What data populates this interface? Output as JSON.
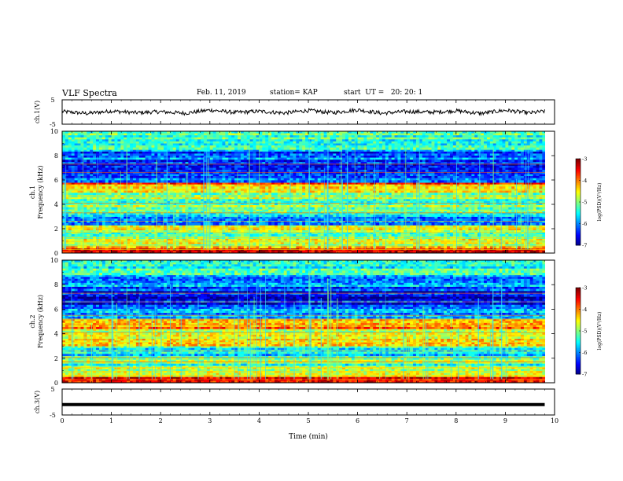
{
  "header": {
    "title": "VLF Spectra",
    "date": "Feb. 11, 2019",
    "station": "station= KAP",
    "start": "start  UT =   20: 20: 1"
  },
  "chart_data": [
    {
      "type": "line",
      "panel": "ch1-waveform",
      "ylabel": "ch.1(V)",
      "ylim": [
        -5,
        5
      ],
      "yticks": [
        "5",
        "-5"
      ],
      "xlim": [
        0,
        10
      ],
      "note_values": "approximate waveform samples (V) vs time (min)",
      "x": [
        0,
        0.5,
        1,
        1.5,
        2,
        2.5,
        3,
        3.5,
        4,
        4.5,
        5,
        5.5,
        6,
        6.5,
        7,
        7.5,
        8,
        8.5,
        9,
        9.5,
        9.8
      ],
      "y": [
        0.2,
        -0.6,
        0.4,
        -0.3,
        0.1,
        -0.5,
        0.8,
        -0.2,
        0.3,
        -0.4,
        0.6,
        -0.3,
        0.9,
        -0.5,
        0.2,
        -0.1,
        0.5,
        -0.6,
        0.7,
        -0.4,
        0.3
      ]
    },
    {
      "type": "heatmap",
      "panel": "ch1-spectrogram",
      "ylabel": "ch.1",
      "ylabel2": "Frequency  (kHz)",
      "xlim": [
        0,
        10
      ],
      "ylim": [
        0,
        10
      ],
      "yticks": [
        "0",
        "2",
        "4",
        "6",
        "8",
        "10"
      ],
      "colorbar": {
        "label": "log(PSD)(V²/Hz)",
        "range": [
          -7,
          -3
        ],
        "ticks": [
          "-3",
          "-4",
          "-5",
          "-6",
          "-7"
        ]
      },
      "bands": [
        {
          "f": [
            0,
            0.4
          ],
          "level": -3.5
        },
        {
          "f": [
            0.4,
            1.2
          ],
          "level": -4.6
        },
        {
          "f": [
            1.2,
            1.9
          ],
          "level": -5.0
        },
        {
          "f": [
            1.9,
            2.3
          ],
          "level": -4.3
        },
        {
          "f": [
            2.3,
            3.0
          ],
          "level": -5.7
        },
        {
          "f": [
            3.0,
            3.6
          ],
          "level": -5.3
        },
        {
          "f": [
            3.6,
            4.6
          ],
          "level": -5.0
        },
        {
          "f": [
            4.6,
            5.3
          ],
          "level": -4.8
        },
        {
          "f": [
            5.3,
            5.8
          ],
          "level": -4.0
        },
        {
          "f": [
            5.8,
            6.5
          ],
          "level": -6.2
        },
        {
          "f": [
            6.5,
            7.5
          ],
          "level": -6.5
        },
        {
          "f": [
            7.5,
            8.5
          ],
          "level": -6.1
        },
        {
          "f": [
            8.5,
            10
          ],
          "level": -5.2
        }
      ]
    },
    {
      "type": "heatmap",
      "panel": "ch2-spectrogram",
      "ylabel": "ch.2",
      "ylabel2": "Frequency  (kHz)",
      "xlim": [
        0,
        10
      ],
      "ylim": [
        0,
        10
      ],
      "yticks": [
        "0",
        "2",
        "4",
        "6",
        "8",
        "10"
      ],
      "colorbar": {
        "label": "log(PSD)(V²/Hz)",
        "range": [
          -7,
          -3
        ],
        "ticks": [
          "-3",
          "-4",
          "-5",
          "-6",
          "-7"
        ]
      },
      "bands": [
        {
          "f": [
            0,
            0.5
          ],
          "level": -3.6
        },
        {
          "f": [
            0.5,
            1.4
          ],
          "level": -4.9
        },
        {
          "f": [
            1.4,
            2.2
          ],
          "level": -5.1
        },
        {
          "f": [
            2.2,
            3.0
          ],
          "level": -5.5
        },
        {
          "f": [
            3.0,
            3.6
          ],
          "level": -4.6
        },
        {
          "f": [
            3.6,
            4.4
          ],
          "level": -4.8
        },
        {
          "f": [
            4.4,
            5.2
          ],
          "level": -4.2
        },
        {
          "f": [
            5.2,
            6.2
          ],
          "level": -5.8
        },
        {
          "f": [
            6.2,
            7.5
          ],
          "level": -6.5
        },
        {
          "f": [
            7.5,
            8.8
          ],
          "level": -6.0
        },
        {
          "f": [
            8.8,
            10
          ],
          "level": -5.4
        }
      ]
    },
    {
      "type": "line",
      "panel": "ch3-waveform",
      "ylabel": "ch.3(V)",
      "ylim": [
        -5,
        5
      ],
      "yticks": [
        "5",
        "-5"
      ],
      "xlim": [
        0,
        10
      ],
      "xlabel": "Time  (min)",
      "xticks": [
        "0",
        "1",
        "2",
        "3",
        "4",
        "5",
        "6",
        "7",
        "8",
        "9",
        "10"
      ],
      "x": [
        0,
        9.8
      ],
      "y": [
        -1,
        -1
      ]
    }
  ]
}
